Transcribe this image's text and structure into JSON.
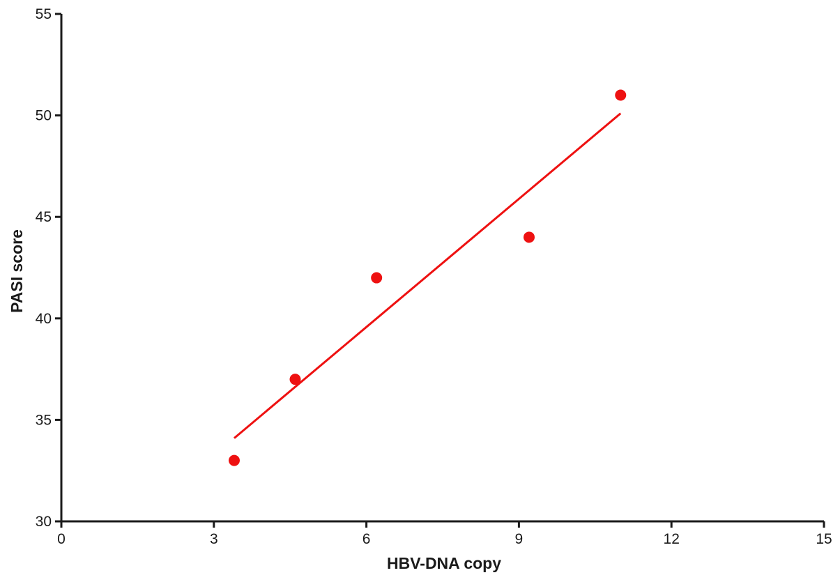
{
  "chart_data": {
    "type": "scatter",
    "title": "",
    "xlabel": "HBV-DNA copy",
    "ylabel": "PASI score",
    "xlim": [
      0,
      15
    ],
    "ylim": [
      30,
      55
    ],
    "xticks": [
      0,
      3,
      6,
      9,
      12,
      15
    ],
    "yticks": [
      30,
      35,
      40,
      45,
      50,
      55
    ],
    "grid": false,
    "series": [
      {
        "points": [
          {
            "x": 3.4,
            "y": 33
          },
          {
            "x": 4.6,
            "y": 37
          },
          {
            "x": 6.2,
            "y": 42
          },
          {
            "x": 9.2,
            "y": 44
          },
          {
            "x": 11.0,
            "y": 51
          }
        ],
        "color": "#ee1111"
      }
    ],
    "trendline": {
      "x": [
        3.4,
        11.0
      ],
      "y": [
        34.1,
        50.1
      ],
      "color": "#ee1111"
    },
    "axis_color": "#1a1a1a"
  }
}
